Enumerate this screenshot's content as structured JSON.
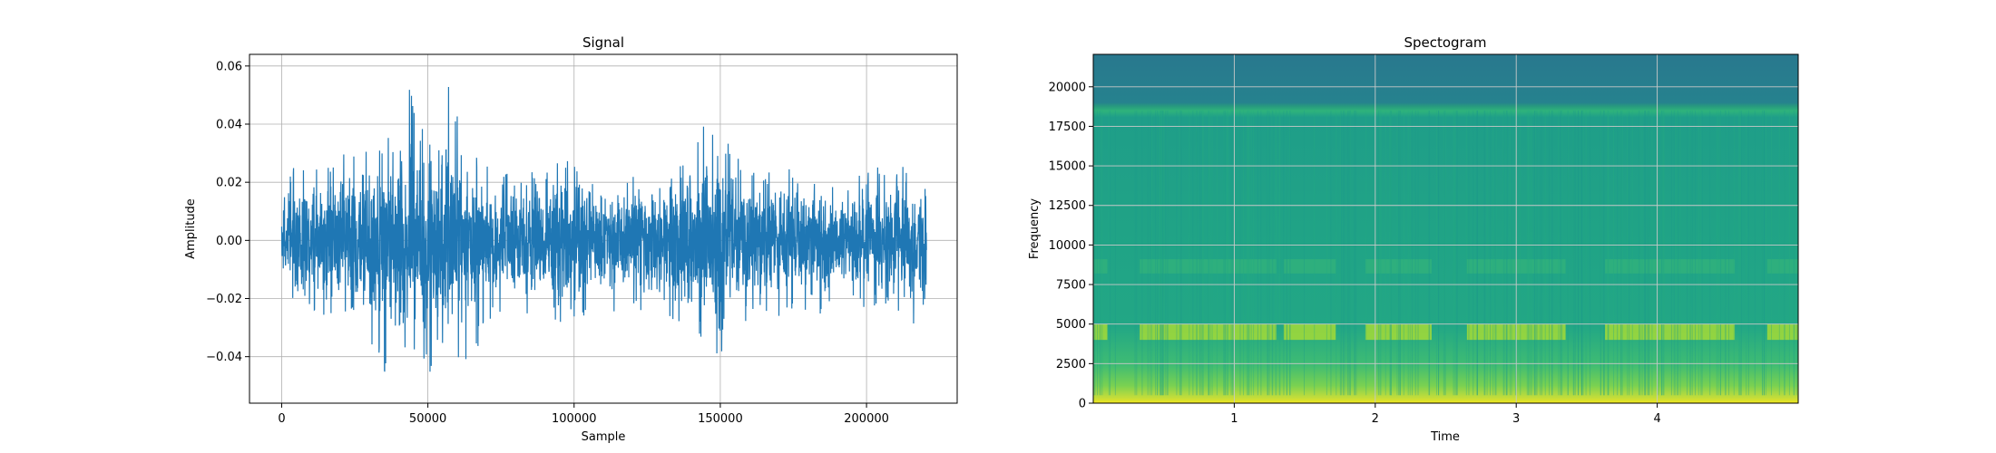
{
  "chart_data": [
    {
      "type": "line",
      "title": "Signal",
      "xlabel": "Sample",
      "ylabel": "Amplitude",
      "xlim": [
        -11000,
        231000
      ],
      "ylim": [
        -0.056,
        0.064
      ],
      "xticks": [
        0,
        50000,
        100000,
        150000,
        200000
      ],
      "xtick_labels": [
        "0",
        "50000",
        "100000",
        "150000",
        "200000"
      ],
      "yticks": [
        -0.04,
        -0.02,
        0.0,
        0.02,
        0.04,
        0.06
      ],
      "ytick_labels": [
        "−0.04",
        "−0.02",
        "0.00",
        "0.02",
        "0.04",
        "0.06"
      ],
      "grid": true,
      "color": "#1f77b4",
      "series": [
        {
          "x_range": [
            0,
            220500
          ],
          "envelope_max": [
            0.013,
            0.035,
            0.024,
            0.027,
            0.034,
            0.031,
            0.04,
            0.053,
            0.036,
            0.06,
            0.031,
            0.028,
            0.023,
            0.026,
            0.024,
            0.03,
            0.026,
            0.021,
            0.023,
            0.026,
            0.025,
            0.024,
            0.03,
            0.041,
            0.04,
            0.026,
            0.023,
            0.027,
            0.024,
            0.022,
            0.021,
            0.023,
            0.026,
            0.024,
            0.026,
            0.02
          ],
          "envelope_min": [
            -0.015,
            -0.026,
            -0.025,
            -0.03,
            -0.036,
            -0.039,
            -0.05,
            -0.039,
            -0.047,
            -0.031,
            -0.047,
            -0.032,
            -0.026,
            -0.025,
            -0.027,
            -0.03,
            -0.028,
            -0.023,
            -0.025,
            -0.026,
            -0.03,
            -0.027,
            -0.033,
            -0.037,
            -0.041,
            -0.03,
            -0.026,
            -0.026,
            -0.024,
            -0.026,
            -0.023,
            -0.022,
            -0.026,
            -0.024,
            -0.03,
            -0.031
          ]
        }
      ]
    },
    {
      "type": "heatmap",
      "title": "Spectogram",
      "xlabel": "Time",
      "ylabel": "Frequency",
      "xlim": [
        0,
        5
      ],
      "ylim": [
        0,
        22050
      ],
      "xticks": [
        1,
        2,
        3,
        4
      ],
      "xtick_labels": [
        "1",
        "2",
        "3",
        "4"
      ],
      "yticks": [
        0,
        2500,
        5000,
        7500,
        10000,
        12500,
        15000,
        17500,
        20000
      ],
      "ytick_labels": [
        "0",
        "2500",
        "5000",
        "7500",
        "10000",
        "12500",
        "15000",
        "17500",
        "20000"
      ],
      "grid": true,
      "colormap": "viridis",
      "time_range": [
        0,
        5
      ],
      "freq_range": [
        0,
        22050
      ],
      "bright_band_segments": [
        [
          0.0,
          0.1
        ],
        [
          0.33,
          1.3
        ],
        [
          1.35,
          1.72
        ],
        [
          1.93,
          2.4
        ],
        [
          2.65,
          3.35
        ],
        [
          3.63,
          4.55
        ],
        [
          4.78,
          5.0
        ]
      ],
      "bright_band_freq": [
        4000,
        5000
      ],
      "high_cutoff_freq": 18500
    }
  ]
}
